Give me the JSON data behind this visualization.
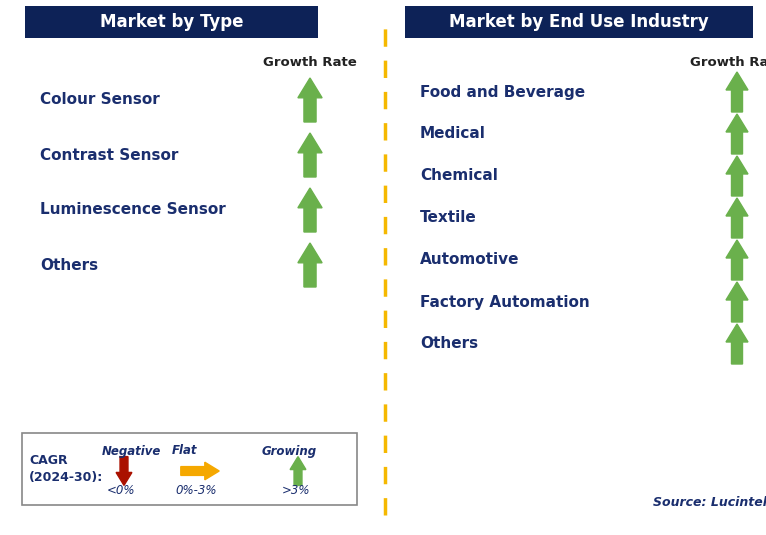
{
  "left_title": "Market by Type",
  "right_title": "Market by End Use Industry",
  "left_items": [
    "Colour Sensor",
    "Contrast Sensor",
    "Luminescence Sensor",
    "Others"
  ],
  "right_items": [
    "Food and Beverage",
    "Medical",
    "Chemical",
    "Textile",
    "Automotive",
    "Factory Automation",
    "Others"
  ],
  "left_arrow_colors": [
    "#6ab04c",
    "#6ab04c",
    "#6ab04c",
    "#6ab04c"
  ],
  "right_arrow_colors": [
    "#6ab04c",
    "#6ab04c",
    "#6ab04c",
    "#6ab04c",
    "#6ab04c",
    "#6ab04c",
    "#6ab04c"
  ],
  "header_bg_color": "#0d2257",
  "header_text_color": "#ffffff",
  "item_text_color": "#1a2e6e",
  "growth_rate_text_color": "#222222",
  "divider_color": "#f5b800",
  "source_text": "Source: Lucintel",
  "legend_cagr_label": "CAGR\n(2024-30):",
  "legend_negative_label": "Negative",
  "legend_negative_sublabel": "<0%",
  "legend_flat_label": "Flat",
  "legend_flat_sublabel": "0%-3%",
  "legend_growing_label": "Growing",
  "legend_growing_sublabel": ">3%",
  "legend_negative_color": "#aa1100",
  "legend_flat_color": "#f5a800",
  "legend_growing_color": "#6ab04c",
  "background_color": "#ffffff"
}
